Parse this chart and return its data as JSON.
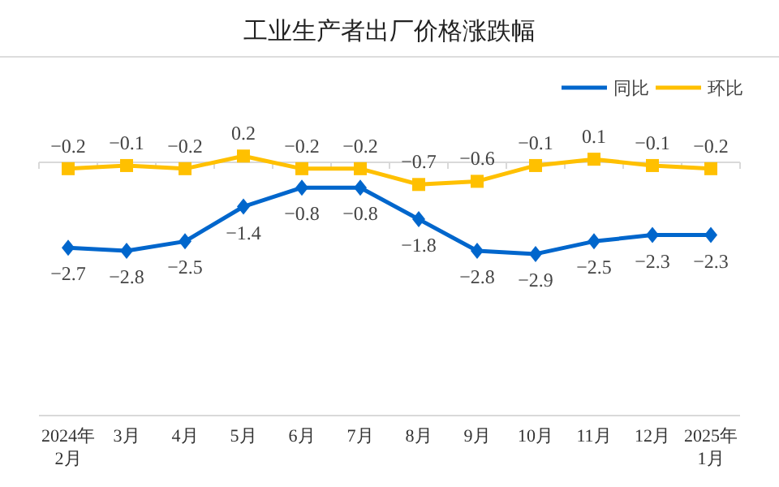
{
  "chart_data": {
    "type": "line",
    "title": "工业生产者出厂价格涨跌幅",
    "categories": [
      "2024年\n2月",
      "3月",
      "4月",
      "5月",
      "6月",
      "7月",
      "8月",
      "9月",
      "10月",
      "11月",
      "12月",
      "2025年\n1月"
    ],
    "series": [
      {
        "name": "同比",
        "color": "#0066cc",
        "marker": "diamond",
        "values": [
          -2.7,
          -2.8,
          -2.5,
          -1.4,
          -0.8,
          -0.8,
          -1.8,
          -2.8,
          -2.9,
          -2.5,
          -2.3,
          -2.3
        ]
      },
      {
        "name": "环比",
        "color": "#ffc000",
        "marker": "square",
        "values": [
          -0.2,
          -0.1,
          -0.2,
          0.2,
          -0.2,
          -0.2,
          -0.7,
          -0.6,
          -0.1,
          0.1,
          -0.1,
          -0.2
        ]
      }
    ],
    "data_labels": true,
    "legend": "top right"
  }
}
